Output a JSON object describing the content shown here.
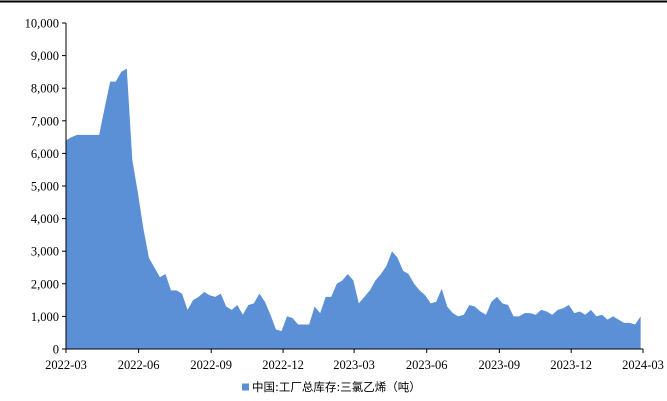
{
  "chart_data": {
    "type": "area",
    "title": "",
    "xlabel": "",
    "ylabel": "",
    "ylim": [
      0,
      10000
    ],
    "y_ticks": [
      0,
      1000,
      2000,
      3000,
      4000,
      5000,
      6000,
      7000,
      8000,
      9000,
      10000
    ],
    "y_tick_labels": [
      "0",
      "1,000",
      "2,000",
      "3,000",
      "4,000",
      "5,000",
      "6,000",
      "7,000",
      "8,000",
      "9,000",
      "10,000"
    ],
    "x_range": [
      "2022-03-01",
      "2024-03-01"
    ],
    "x_ticks": [
      "2022-03-01",
      "2022-06-01",
      "2022-09-01",
      "2022-12-01",
      "2023-03-01",
      "2023-06-01",
      "2023-09-01",
      "2023-12-01",
      "2024-03-01"
    ],
    "x_tick_labels": [
      "2022-03",
      "2022-06",
      "2022-09",
      "2022-12",
      "2023-03",
      "2023-06",
      "2023-09",
      "2023-12",
      "2024-03"
    ],
    "grid": false,
    "legend_position": "bottom-center",
    "series": [
      {
        "name": "中国:工厂总库存:三氯乙烯（吨）",
        "color": "#5b8fd6",
        "points": [
          [
            "2022-03-01",
            6400
          ],
          [
            "2022-03-08",
            6500
          ],
          [
            "2022-03-15",
            6570
          ],
          [
            "2022-03-22",
            6570
          ],
          [
            "2022-03-29",
            6570
          ],
          [
            "2022-04-05",
            6570
          ],
          [
            "2022-04-12",
            6570
          ],
          [
            "2022-04-19",
            7400
          ],
          [
            "2022-04-26",
            8200
          ],
          [
            "2022-05-03",
            8200
          ],
          [
            "2022-05-10",
            8500
          ],
          [
            "2022-05-17",
            8600
          ],
          [
            "2022-05-24",
            5800
          ],
          [
            "2022-05-31",
            4800
          ],
          [
            "2022-06-07",
            3700
          ],
          [
            "2022-06-14",
            2800
          ],
          [
            "2022-06-21",
            2500
          ],
          [
            "2022-06-28",
            2200
          ],
          [
            "2022-07-05",
            2300
          ],
          [
            "2022-07-12",
            1800
          ],
          [
            "2022-07-19",
            1800
          ],
          [
            "2022-07-26",
            1700
          ],
          [
            "2022-08-02",
            1200
          ],
          [
            "2022-08-09",
            1500
          ],
          [
            "2022-08-16",
            1600
          ],
          [
            "2022-08-23",
            1750
          ],
          [
            "2022-08-30",
            1650
          ],
          [
            "2022-09-06",
            1600
          ],
          [
            "2022-09-13",
            1700
          ],
          [
            "2022-09-20",
            1300
          ],
          [
            "2022-09-27",
            1200
          ],
          [
            "2022-10-04",
            1350
          ],
          [
            "2022-10-11",
            1050
          ],
          [
            "2022-10-18",
            1350
          ],
          [
            "2022-10-25",
            1400
          ],
          [
            "2022-11-01",
            1700
          ],
          [
            "2022-11-08",
            1450
          ],
          [
            "2022-11-15",
            1050
          ],
          [
            "2022-11-22",
            600
          ],
          [
            "2022-11-29",
            550
          ],
          [
            "2022-12-06",
            1000
          ],
          [
            "2022-12-13",
            950
          ],
          [
            "2022-12-20",
            750
          ],
          [
            "2022-12-27",
            750
          ],
          [
            "2023-01-03",
            750
          ],
          [
            "2023-01-10",
            1300
          ],
          [
            "2023-01-17",
            1100
          ],
          [
            "2023-01-24",
            1600
          ],
          [
            "2023-01-31",
            1600
          ],
          [
            "2023-02-07",
            2000
          ],
          [
            "2023-02-14",
            2100
          ],
          [
            "2023-02-21",
            2300
          ],
          [
            "2023-02-28",
            2100
          ],
          [
            "2023-03-07",
            1400
          ],
          [
            "2023-03-14",
            1600
          ],
          [
            "2023-03-21",
            1800
          ],
          [
            "2023-03-28",
            2100
          ],
          [
            "2023-04-04",
            2300
          ],
          [
            "2023-04-11",
            2550
          ],
          [
            "2023-04-18",
            3000
          ],
          [
            "2023-04-25",
            2800
          ],
          [
            "2023-05-02",
            2400
          ],
          [
            "2023-05-09",
            2300
          ],
          [
            "2023-05-16",
            2000
          ],
          [
            "2023-05-23",
            1800
          ],
          [
            "2023-05-30",
            1650
          ],
          [
            "2023-06-06",
            1400
          ],
          [
            "2023-06-13",
            1450
          ],
          [
            "2023-06-20",
            1850
          ],
          [
            "2023-06-27",
            1300
          ],
          [
            "2023-07-04",
            1100
          ],
          [
            "2023-07-11",
            1000
          ],
          [
            "2023-07-18",
            1050
          ],
          [
            "2023-07-25",
            1350
          ],
          [
            "2023-08-01",
            1300
          ],
          [
            "2023-08-08",
            1150
          ],
          [
            "2023-08-15",
            1050
          ],
          [
            "2023-08-22",
            1450
          ],
          [
            "2023-08-29",
            1600
          ],
          [
            "2023-09-05",
            1400
          ],
          [
            "2023-09-12",
            1350
          ],
          [
            "2023-09-19",
            1000
          ],
          [
            "2023-09-26",
            1000
          ],
          [
            "2023-10-03",
            1100
          ],
          [
            "2023-10-10",
            1100
          ],
          [
            "2023-10-17",
            1050
          ],
          [
            "2023-10-24",
            1200
          ],
          [
            "2023-10-31",
            1150
          ],
          [
            "2023-11-07",
            1050
          ],
          [
            "2023-11-14",
            1200
          ],
          [
            "2023-11-21",
            1250
          ],
          [
            "2023-11-28",
            1350
          ],
          [
            "2023-12-05",
            1100
          ],
          [
            "2023-12-12",
            1150
          ],
          [
            "2023-12-19",
            1050
          ],
          [
            "2023-12-26",
            1200
          ],
          [
            "2024-01-02",
            1000
          ],
          [
            "2024-01-09",
            1050
          ],
          [
            "2024-01-16",
            900
          ],
          [
            "2024-01-23",
            1000
          ],
          [
            "2024-01-30",
            900
          ],
          [
            "2024-02-06",
            800
          ],
          [
            "2024-02-13",
            800
          ],
          [
            "2024-02-20",
            750
          ],
          [
            "2024-02-27",
            1000
          ]
        ]
      }
    ]
  }
}
